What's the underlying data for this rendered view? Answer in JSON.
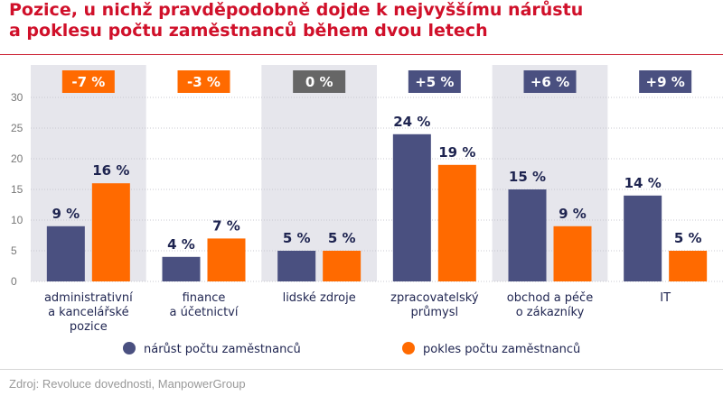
{
  "title_lines": [
    "Pozice, u nichž pravděpodobně dojde k nejvyššímu nárůstu",
    "a poklesu počtu zaměstnanců během dvou letech"
  ],
  "source": "Zdroj: Revoluce dovednosti, ManpowerGroup",
  "colors": {
    "title": "#d0102a",
    "growth": "#4a5080",
    "decline": "#ff6a00",
    "band": "#e6e6ec",
    "badge_negative": "#ff6a00",
    "badge_zero": "#666666",
    "badge_positive": "#4a5080"
  },
  "chart_data": {
    "type": "bar",
    "categories": [
      [
        "administrativní",
        "a kancelářské",
        "pozice"
      ],
      [
        "finance",
        "a účetnictví"
      ],
      [
        "lidské zdroje"
      ],
      [
        "zpracovatelský",
        "průmysl"
      ],
      [
        "obchod a péče",
        "o zákazníky"
      ],
      [
        "IT"
      ]
    ],
    "series": [
      {
        "name": "nárůst počtu zaměstnanců",
        "values": [
          9,
          4,
          5,
          24,
          15,
          14
        ],
        "labels": [
          "9 %",
          "4 %",
          "5 %",
          "24 %",
          "15 %",
          "14 %"
        ]
      },
      {
        "name": "pokles počtu zaměstnanců",
        "values": [
          16,
          7,
          5,
          19,
          9,
          5
        ],
        "labels": [
          "16 %",
          "7 %",
          "5 %",
          "19 %",
          "9 %",
          "5 %"
        ]
      }
    ],
    "net_change": [
      "-7 %",
      "-3 %",
      "0 %",
      "+5 %",
      "+6 %",
      "+9 %"
    ],
    "net_change_sign": [
      "negative",
      "negative",
      "zero",
      "positive",
      "positive",
      "positive"
    ],
    "yticks": [
      0,
      5,
      10,
      15,
      20,
      25,
      30
    ],
    "ylim": [
      0,
      30
    ],
    "legend_position": "bottom"
  }
}
